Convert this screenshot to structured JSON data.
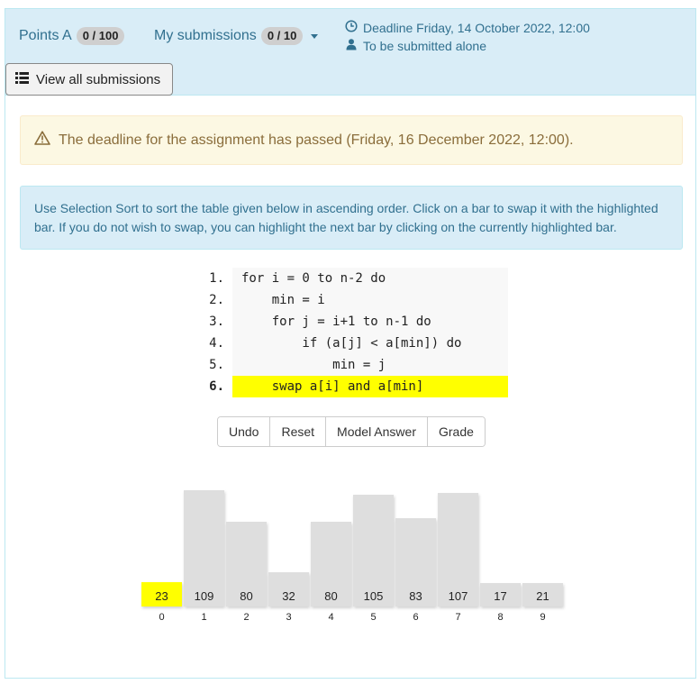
{
  "header": {
    "points_label": "Points A",
    "points_badge": "0 / 100",
    "submissions_label": "My submissions",
    "submissions_badge": "0 / 10",
    "deadline": "Deadline Friday, 14 October 2022, 12:00",
    "submit_mode": "To be submitted alone",
    "view_all_label": "View all submissions"
  },
  "warning": {
    "text": "The deadline for the assignment has passed (Friday, 16 December 2022, 12:00)."
  },
  "instructions": {
    "text": "Use Selection Sort to sort the table given below in ascending order. Click on a bar to swap it with the highlighted bar. If you do not wish to swap, you can highlight the next bar by clicking on the currently highlighted bar."
  },
  "code": {
    "lines": [
      {
        "num": "1.",
        "text": "for i = 0 to n-2 do"
      },
      {
        "num": "2.",
        "text": "    min = i"
      },
      {
        "num": "3.",
        "text": "    for j = i+1 to n-1 do"
      },
      {
        "num": "4.",
        "text": "        if (a[j] < a[min]) do"
      },
      {
        "num": "5.",
        "text": "            min = j"
      },
      {
        "num": "6.",
        "text": "    swap a[i] and a[min]"
      }
    ],
    "highlighted_line": 6
  },
  "buttons": {
    "undo": "Undo",
    "reset": "Reset",
    "model_answer": "Model Answer",
    "grade": "Grade"
  },
  "array": {
    "values": [
      23,
      109,
      80,
      32,
      80,
      105,
      83,
      107,
      17,
      21
    ],
    "indices": [
      "0",
      "1",
      "2",
      "3",
      "4",
      "5",
      "6",
      "7",
      "8",
      "9"
    ],
    "highlighted_index": 0,
    "highlight_color": "#ffff00",
    "bar_color": "#dedede"
  }
}
